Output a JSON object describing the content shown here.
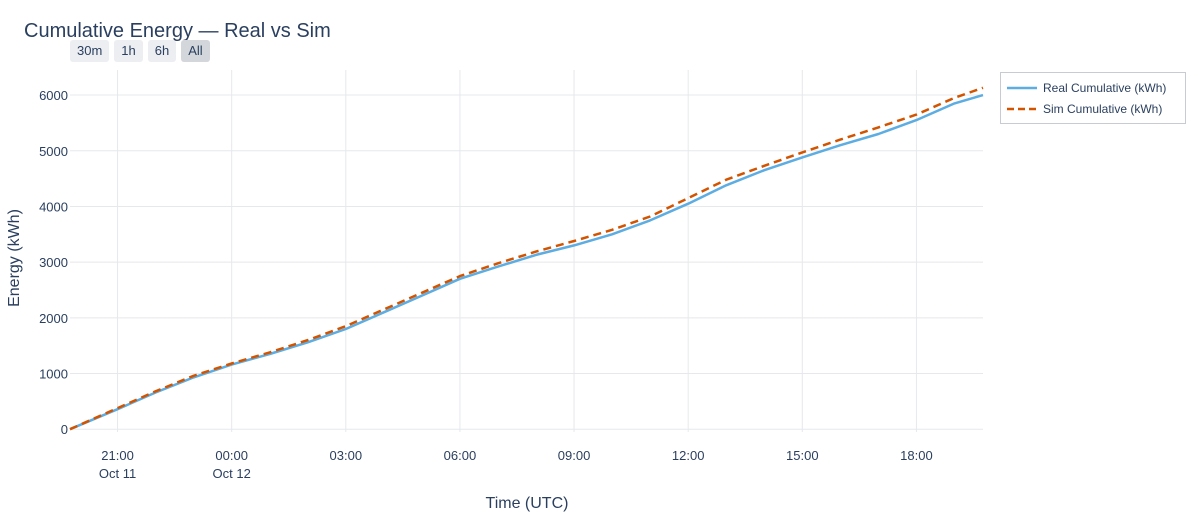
{
  "title": "Cumulative Energy — Real vs Sim",
  "range_buttons": [
    {
      "label": "30m",
      "active": false
    },
    {
      "label": "1h",
      "active": false
    },
    {
      "label": "6h",
      "active": false
    },
    {
      "label": "All",
      "active": true
    }
  ],
  "colors": {
    "real": "#5dade2",
    "sim": "#d35400",
    "grid": "#e6e8ec",
    "text": "#2a3f5f"
  },
  "chart_data": {
    "type": "line",
    "title": "Cumulative Energy — Real vs Sim",
    "xlabel": "Time (UTC)",
    "ylabel": "Energy (kWh)",
    "xlim": [
      "2025-10-11 19:45",
      "2025-10-12 19:45"
    ],
    "ylim": [
      -50,
      6450
    ],
    "grid": true,
    "legend_position": "top-right-outside",
    "x_ticks": [
      {
        "t": "2025-10-11 21:00",
        "label": "21:00",
        "sublabel": "Oct 11"
      },
      {
        "t": "2025-10-12 00:00",
        "label": "00:00",
        "sublabel": "Oct 12"
      },
      {
        "t": "2025-10-12 03:00",
        "label": "03:00",
        "sublabel": ""
      },
      {
        "t": "2025-10-12 06:00",
        "label": "06:00",
        "sublabel": ""
      },
      {
        "t": "2025-10-12 09:00",
        "label": "09:00",
        "sublabel": ""
      },
      {
        "t": "2025-10-12 12:00",
        "label": "12:00",
        "sublabel": ""
      },
      {
        "t": "2025-10-12 15:00",
        "label": "15:00",
        "sublabel": ""
      },
      {
        "t": "2025-10-12 18:00",
        "label": "18:00",
        "sublabel": ""
      }
    ],
    "y_ticks": [
      0,
      1000,
      2000,
      3000,
      4000,
      5000,
      6000
    ],
    "x": [
      "2025-10-11 19:45",
      "2025-10-11 21:00",
      "2025-10-11 22:00",
      "2025-10-11 23:00",
      "2025-10-12 00:00",
      "2025-10-12 01:00",
      "2025-10-12 02:00",
      "2025-10-12 03:00",
      "2025-10-12 04:00",
      "2025-10-12 05:00",
      "2025-10-12 06:00",
      "2025-10-12 07:00",
      "2025-10-12 08:00",
      "2025-10-12 09:00",
      "2025-10-12 10:00",
      "2025-10-12 11:00",
      "2025-10-12 12:00",
      "2025-10-12 13:00",
      "2025-10-12 14:00",
      "2025-10-12 15:00",
      "2025-10-12 16:00",
      "2025-10-12 17:00",
      "2025-10-12 18:00",
      "2025-10-12 19:00",
      "2025-10-12 19:45"
    ],
    "series": [
      {
        "name": "Real Cumulative (kWh)",
        "style": "solid",
        "values": [
          0,
          360,
          660,
          930,
          1160,
          1350,
          1560,
          1800,
          2100,
          2400,
          2700,
          2920,
          3130,
          3300,
          3500,
          3750,
          4050,
          4380,
          4650,
          4880,
          5100,
          5300,
          5550,
          5850,
          6000
        ]
      },
      {
        "name": "Sim Cumulative (kWh)",
        "style": "dash",
        "values": [
          0,
          380,
          680,
          960,
          1180,
          1380,
          1600,
          1850,
          2150,
          2450,
          2750,
          2980,
          3190,
          3380,
          3580,
          3820,
          4150,
          4480,
          4730,
          4970,
          5200,
          5420,
          5650,
          5950,
          6130
        ]
      }
    ]
  }
}
